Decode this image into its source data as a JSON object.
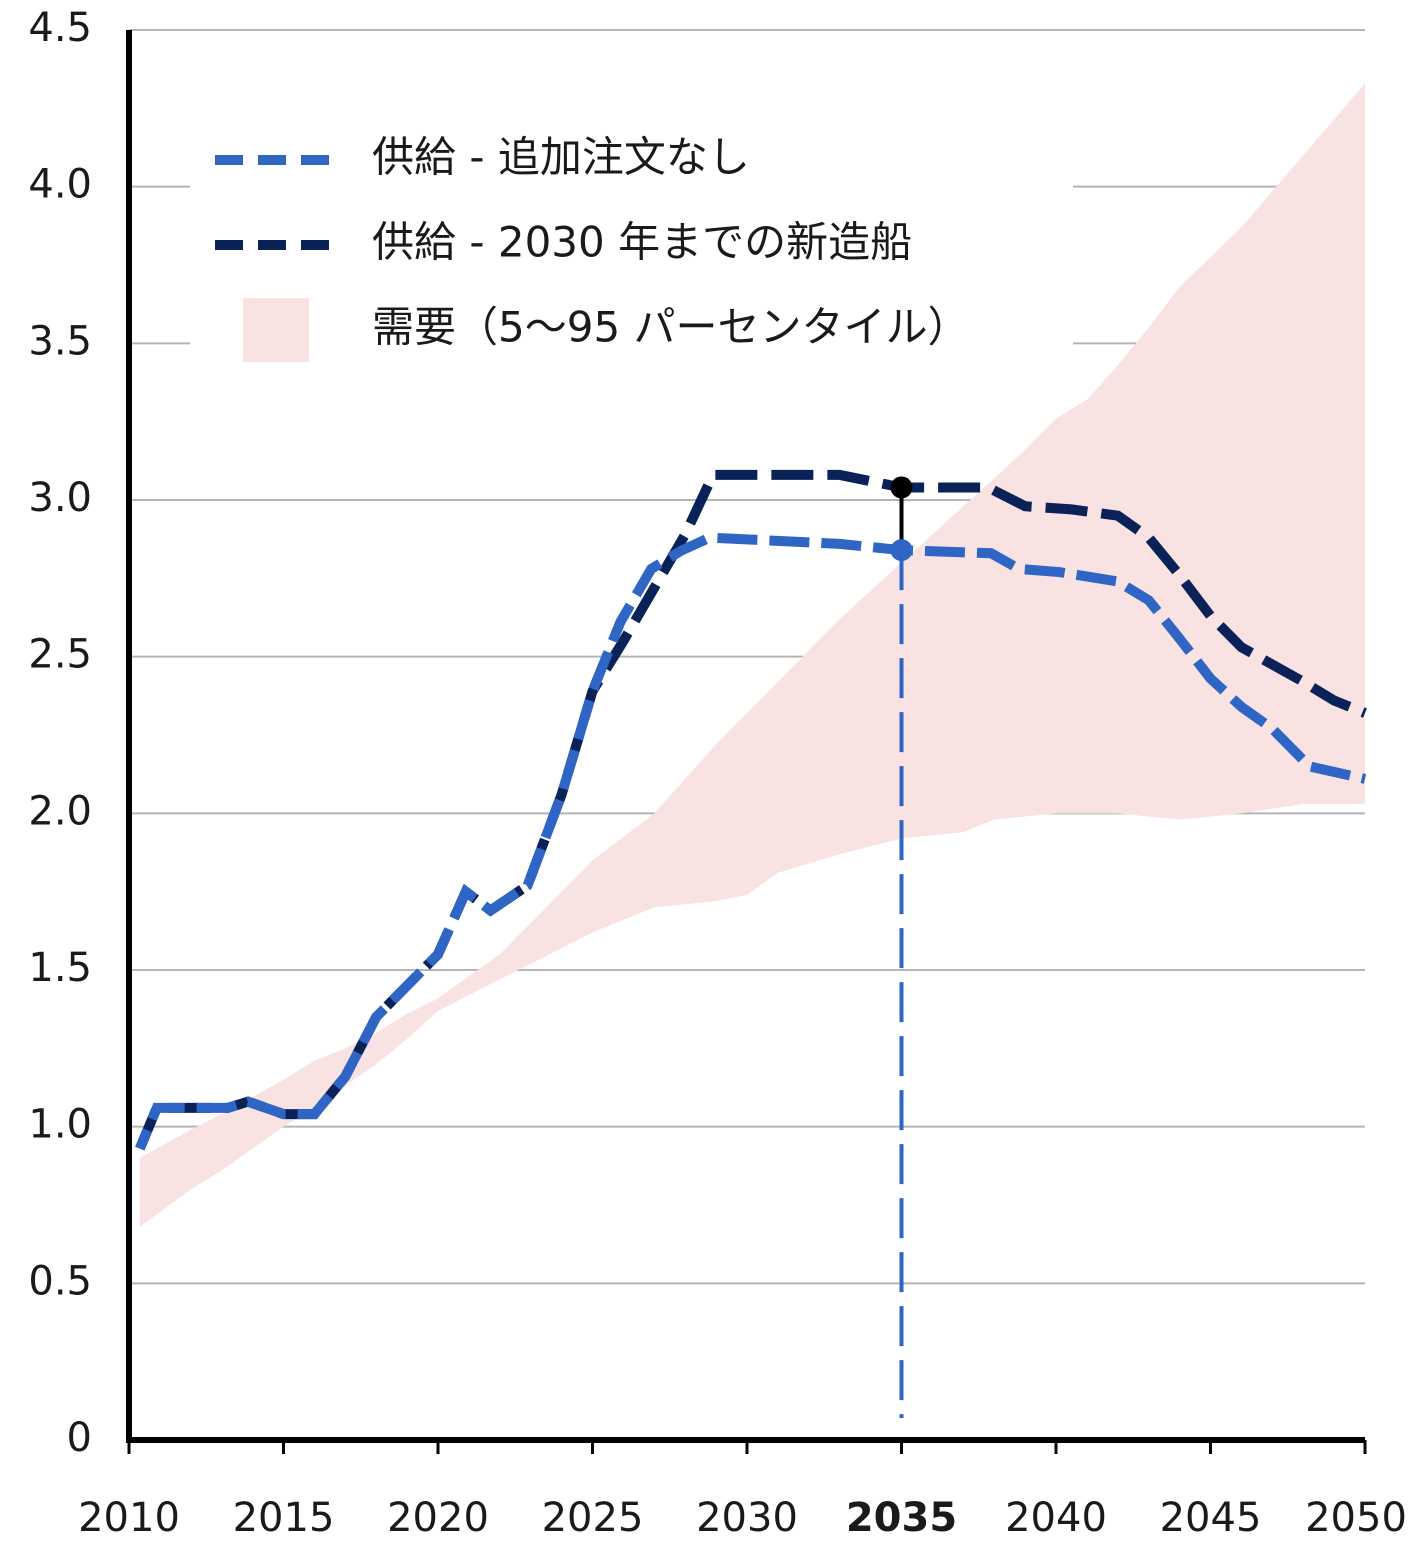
{
  "chart_data": {
    "type": "line",
    "xlim": [
      2010,
      2050
    ],
    "ylim": [
      0,
      4.5
    ],
    "xticks": [
      2010,
      2015,
      2020,
      2025,
      2030,
      2035,
      2040,
      2045,
      2050
    ],
    "yticks": [
      0,
      0.5,
      {
        "value": 1,
        "label": "1.0"
      },
      1.5,
      {
        "value": 2,
        "label": "2.0"
      },
      2.5,
      {
        "value": 3,
        "label": "3.0"
      },
      3.5,
      {
        "value": 4,
        "label": "4.0"
      },
      4.5
    ],
    "grid": true,
    "legend": "upper left",
    "highlight_x": 2035,
    "series": [
      {
        "name": "供給 - 追加注文なし",
        "color": "#2f66c6",
        "x": [
          2010.35,
          2010.9,
          2013.2,
          2013.85,
          2015,
          2016,
          2017,
          2018,
          2019,
          2020,
          2020.9,
          2021.7,
          2022.9,
          2024,
          2025,
          2025.9,
          2026.9,
          2027.9,
          2028.8,
          2033,
          2035,
          2037.9,
          2038.8,
          2040.1,
          2042,
          2043,
          2043.9,
          2045,
          2046,
          2047,
          2048.2,
          2050
        ],
        "values": [
          0.93,
          1.06,
          1.06,
          1.08,
          1.04,
          1.04,
          1.16,
          1.35,
          1.45,
          1.55,
          1.75,
          1.69,
          1.77,
          2.06,
          2.39,
          2.61,
          2.78,
          2.84,
          2.88,
          2.86,
          2.84,
          2.83,
          2.78,
          2.77,
          2.74,
          2.68,
          2.57,
          2.43,
          2.34,
          2.27,
          2.15,
          2.11
        ]
      },
      {
        "name": "供給 - 2030 年までの新造船",
        "color": "#0b2259",
        "x": [
          2010.35,
          2010.9,
          2013.2,
          2013.85,
          2015,
          2016,
          2017,
          2018,
          2019,
          2020,
          2020.9,
          2021.7,
          2022.9,
          2024,
          2025,
          2026,
          2027,
          2028,
          2028.9,
          2033,
          2035,
          2037.8,
          2039,
          2040.5,
          2042,
          2043,
          2044,
          2045,
          2046,
          2048,
          2049,
          2050
        ],
        "values": [
          0.93,
          1.06,
          1.06,
          1.08,
          1.04,
          1.04,
          1.16,
          1.35,
          1.45,
          1.55,
          1.75,
          1.69,
          1.77,
          2.06,
          2.39,
          2.55,
          2.72,
          2.89,
          3.08,
          3.08,
          3.04,
          3.04,
          2.98,
          2.97,
          2.95,
          2.88,
          2.76,
          2.63,
          2.53,
          2.42,
          2.36,
          2.32
        ]
      }
    ],
    "band": {
      "name": "需要（5〜95 パーセンタイル）",
      "color": "#f8e2e2",
      "x": [
        2010.35,
        2012,
        2013,
        2015,
        2016,
        2017,
        2018,
        2019,
        2020,
        2022,
        2024,
        2025,
        2027,
        2029,
        2030,
        2031,
        2033,
        2035,
        2037,
        2038,
        2039,
        2040,
        2041,
        2042,
        2043,
        2044,
        2046,
        2048,
        2050
      ],
      "upper": [
        0.9,
        0.99,
        1.04,
        1.15,
        1.21,
        1.25,
        1.3,
        1.36,
        1.41,
        1.55,
        1.75,
        1.85,
        2.0,
        2.22,
        2.32,
        2.42,
        2.62,
        2.8,
        2.98,
        3.07,
        3.16,
        3.26,
        3.32,
        3.43,
        3.55,
        3.68,
        3.87,
        4.1,
        4.33
      ],
      "lower": [
        0.68,
        0.8,
        0.86,
        1.0,
        1.06,
        1.13,
        1.2,
        1.28,
        1.37,
        1.47,
        1.57,
        1.62,
        1.7,
        1.72,
        1.74,
        1.81,
        1.87,
        1.92,
        1.94,
        1.98,
        1.99,
        2.0,
        2.0,
        2.0,
        1.99,
        1.98,
        2.0,
        2.03,
        2.03
      ]
    }
  }
}
